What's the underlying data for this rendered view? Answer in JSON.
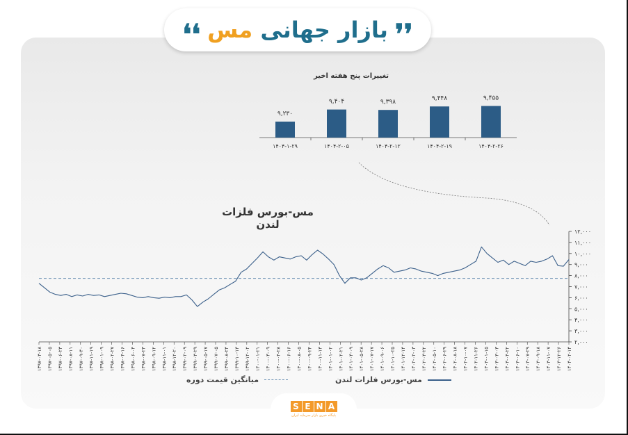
{
  "header": {
    "title_part1": "بازار جهانی",
    "title_part2": "مس",
    "quote_left": "❛❛",
    "quote_right": "❜❜"
  },
  "colors": {
    "line": "#3a5f8a",
    "bar": "#2c5c86",
    "accent": "#f0a020",
    "average": "#6a8fb3"
  },
  "chart_data": [
    {
      "type": "bar",
      "title": "تغییرات پنج هفته اخیر",
      "categories": [
        "۱۴۰۴-۱-۲۹",
        "۱۴۰۴-۲-۰۵",
        "۱۴۰۴-۲-۱۲",
        "۱۴۰۴-۲-۱۹",
        "۱۴۰۴-۲-۲۶"
      ],
      "values": [
        9230,
        9404,
        9398,
        9448,
        9455
      ],
      "value_labels": [
        "۹,۲۳۰",
        "۹,۴۰۴",
        "۹,۳۹۸",
        "۹,۴۴۸",
        "۹,۴۵۵"
      ]
    },
    {
      "type": "line",
      "title": "مس-بورس فلزات لندن",
      "ylim": [
        2000,
        12000
      ],
      "y_ticks": [
        "۱۲,۰۰۰",
        "۱۱,۰۰۰",
        "۱۰,۰۰۰",
        "۹,۰۰۰",
        "۸,۰۰۰",
        "۷,۰۰۰",
        "۶,۰۰۰",
        "۵,۰۰۰",
        "۴,۰۰۰",
        "۳,۰۰۰",
        "۲,۰۰۰"
      ],
      "y_tick_values": [
        12000,
        11000,
        10000,
        9000,
        8000,
        7000,
        6000,
        5000,
        4000,
        3000,
        2000
      ],
      "x_ticks": [
        "۱۳۹۷-۰۳-۱۸",
        "۱۳۹۷-۰۵-۰۵",
        "۱۳۹۷-۰۶-۲۳",
        "۱۳۹۷-۰۸-۱۱",
        "۱۳۹۷-۰۹-۳۰",
        "۱۳۹۷-۱۱-۱۹",
        "۱۳۹۸-۰۱-۰۹",
        "۱۳۹۸-۰۲-۲۷",
        "۱۳۹۸-۰۴-۱۶",
        "۱۳۹۸-۰۶-۰۴",
        "۱۳۹۸-۰۷-۲۳",
        "۱۳۹۸-۰۹-۱۲",
        "۱۳۹۸-۱۱-۰۱",
        "۱۳۹۸-۱۲-۲۰",
        "۱۳۹۹-۰۲-۰۹",
        "۱۳۹۹-۰۳-۲۹",
        "۱۳۹۹-۰۵-۱۷",
        "۱۳۹۹-۰۷-۰۵",
        "۱۳۹۹-۰۸-۲۴",
        "۱۳۹۹-۱۰-۱۳",
        "۱۳۹۹-۱۲-۰۲",
        "۱۴۰۰-۰۱-۲۱",
        "۱۴۰۰-۰۳-۰۹",
        "۱۴۰۰-۰۴-۲۸",
        "۱۴۰۰-۰۶-۱۶",
        "۱۴۰۰-۰۸-۰۵",
        "۱۴۰۰-۰۹-۲۴",
        "۱۴۰۰-۱۱-۱۳",
        "۱۴۰۱-۰۱-۰۲",
        "۱۴۰۱-۰۲-۲۱",
        "۱۴۰۱-۰۴-۰۹",
        "۱۴۰۱-۰۵-۲۸",
        "۱۴۰۱-۰۷-۱۷",
        "۱۴۰۱-۰۹-۰۶",
        "۱۴۰۱-۱۰-۲۵",
        "۱۴۰۱-۱۲-۱۴",
        "۱۴۰۲-۰۲-۰۳",
        "۱۴۰۲-۰۳-۲۲",
        "۱۴۰۲-۰۵-۱۰",
        "۱۴۰۲-۰۶-۲۹",
        "۱۴۰۲-۰۸-۱۸",
        "۱۴۰۲-۱۰-۰۷",
        "۱۴۰۲-۱۱-۲۶",
        "۱۴۰۳-۰۱-۱۵",
        "۱۴۰۳-۰۳-۰۳",
        "۱۴۰۳-۰۴-۲۲",
        "۱۴۰۳-۰۶-۱۰",
        "۱۴۰۳-۰۷-۲۹",
        "۱۴۰۳-۰۹-۱۸",
        "۱۴۰۳-۱۱-۰۷",
        "۱۴۰۳-۱۲-۲۶",
        "۱۴۰۴-۰۲-۱۴"
      ],
      "average": 7750,
      "series": [
        {
          "name": "مس-بورس فلزات لندن",
          "values": [
            7300,
            6900,
            6500,
            6300,
            6200,
            6300,
            6100,
            6250,
            6150,
            6300,
            6200,
            6250,
            6100,
            6200,
            6300,
            6400,
            6350,
            6200,
            6050,
            6000,
            6100,
            6000,
            5950,
            6050,
            6000,
            6100,
            6100,
            6250,
            5800,
            5200,
            5600,
            5900,
            6300,
            6700,
            6900,
            7200,
            7500,
            8300,
            8600,
            9100,
            9600,
            10150,
            9700,
            9400,
            9700,
            9600,
            9500,
            9700,
            9800,
            9400,
            9900,
            10300,
            9950,
            9500,
            9000,
            8000,
            7300,
            7800,
            7800,
            7600,
            7800,
            8200,
            8600,
            8900,
            8700,
            8300,
            8400,
            8500,
            8700,
            8600,
            8400,
            8300,
            8200,
            8000,
            8200,
            8300,
            8400,
            8500,
            8700,
            9000,
            9300,
            10600,
            10000,
            9600,
            9200,
            9400,
            9000,
            9300,
            9100,
            8900,
            9300,
            9200,
            9300,
            9500,
            9800,
            8900,
            8850,
            9455
          ]
        },
        {
          "name": "میانگین قیمت دوره",
          "values": []
        }
      ]
    }
  ],
  "legend": {
    "series_label": "مس-بورس فلزات لندن",
    "average_label": "میانگین قیمت دوره"
  },
  "logo": {
    "letters": [
      "S",
      "E",
      "N",
      "A"
    ],
    "subtitle": "پایگاه خبری بازار سرمایه ایران"
  }
}
